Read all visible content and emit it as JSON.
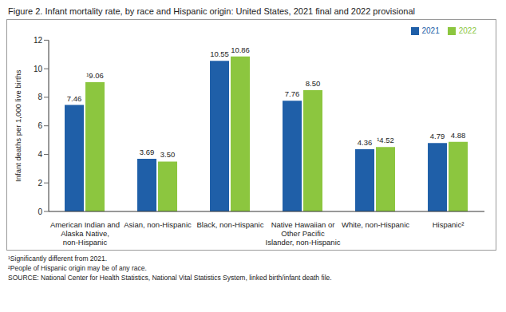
{
  "chart_data": {
    "type": "bar",
    "title": "Figure 2. Infant mortality rate, by race and Hispanic origin: United States, 2021 final and 2022 provisional",
    "ylabel": "Infant deaths per 1,000 live births",
    "categories": [
      "American Indian and Alaska Native, non-Hispanic",
      "Asian, non-Hispanic",
      "Black, non-Hispanic",
      "Native Hawaiian or Other Pacific Islander, non-Hispanic",
      "White, non-Hispanic",
      "Hispanic²"
    ],
    "series": [
      {
        "name": "2021",
        "color": "#1f5fa8",
        "values": [
          7.46,
          3.69,
          10.55,
          7.76,
          4.36,
          4.79
        ]
      },
      {
        "name": "2022",
        "color": "#8cc63f",
        "values": [
          9.06,
          3.5,
          10.86,
          8.5,
          4.52,
          4.88
        ],
        "value_labels": [
          "¹9.06",
          "3.50",
          "10.86",
          "8.50",
          "¹4.52",
          "4.88"
        ]
      }
    ],
    "ylim": [
      0,
      12
    ],
    "yticks": [
      0,
      2,
      4,
      6,
      8,
      10,
      12
    ],
    "grid": false,
    "legend": "upper right",
    "data_labels": true,
    "annotations": [
      "¹Significantly different from 2021.",
      "²People of Hispanic origin may be of any race.",
      "SOURCE: National Center for Health Statistics, National Vital Statistics System, linked birth/infant death file."
    ]
  }
}
